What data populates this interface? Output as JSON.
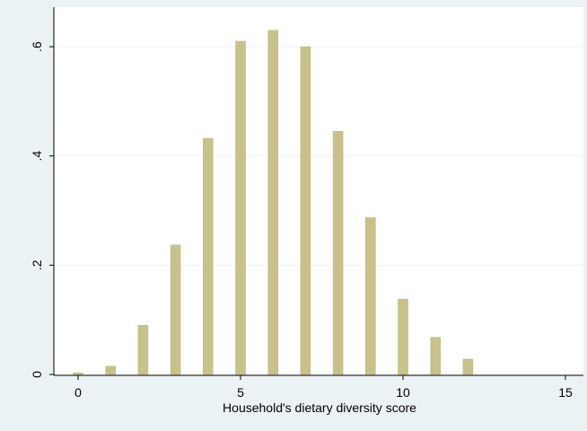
{
  "colors": {
    "background": "#eaf2f3",
    "plot_background": "#ffffff",
    "bar": "#c8c28a",
    "bar_edge": "#b9b37a",
    "grid": "#eaf2f3",
    "axis": "#000000",
    "text": "#000000"
  },
  "chart_data": {
    "type": "bar",
    "title": "",
    "xlabel": "Household's dietary diversity score",
    "ylabel": "",
    "x": [
      0,
      1,
      2,
      3,
      4,
      5,
      6,
      7,
      8,
      9,
      10,
      11,
      12
    ],
    "values": [
      0.003,
      0.015,
      0.09,
      0.237,
      0.432,
      0.61,
      0.63,
      0.6,
      0.445,
      0.287,
      0.138,
      0.068,
      0.028
    ],
    "xlim": [
      0,
      15
    ],
    "ylim": [
      0,
      0.65
    ],
    "xticks": [
      0,
      5,
      10,
      15
    ],
    "xtick_labels": [
      "0",
      "5",
      "10",
      "15"
    ],
    "yticks": [
      0,
      0.2,
      0.4,
      0.6
    ],
    "ytick_labels": [
      "0",
      ".2",
      ".4",
      ".6"
    ],
    "grid": true,
    "legend": "none"
  }
}
